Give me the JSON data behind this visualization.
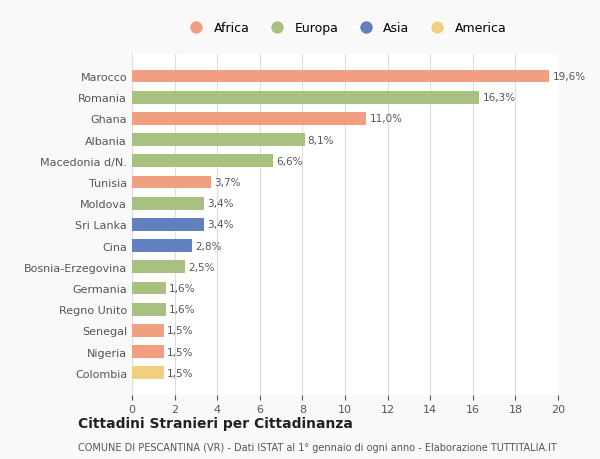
{
  "countries": [
    "Marocco",
    "Romania",
    "Ghana",
    "Albania",
    "Macedonia d/N.",
    "Tunisia",
    "Moldova",
    "Sri Lanka",
    "Cina",
    "Bosnia-Erzegovina",
    "Germania",
    "Regno Unito",
    "Senegal",
    "Nigeria",
    "Colombia"
  ],
  "values": [
    19.6,
    16.3,
    11.0,
    8.1,
    6.6,
    3.7,
    3.4,
    3.4,
    2.8,
    2.5,
    1.6,
    1.6,
    1.5,
    1.5,
    1.5
  ],
  "labels": [
    "19,6%",
    "16,3%",
    "11,0%",
    "8,1%",
    "6,6%",
    "3,7%",
    "3,4%",
    "3,4%",
    "2,8%",
    "2,5%",
    "1,6%",
    "1,6%",
    "1,5%",
    "1,5%",
    "1,5%"
  ],
  "continents": [
    "Africa",
    "Europa",
    "Africa",
    "Europa",
    "Europa",
    "Africa",
    "Europa",
    "Asia",
    "Asia",
    "Europa",
    "Europa",
    "Europa",
    "Africa",
    "Africa",
    "America"
  ],
  "continent_colors": {
    "Africa": "#F0A080",
    "Europa": "#A8C080",
    "Asia": "#6080C0",
    "America": "#F0D080"
  },
  "legend_order": [
    "Africa",
    "Europa",
    "Asia",
    "America"
  ],
  "title": "Cittadini Stranieri per Cittadinanza",
  "subtitle": "COMUNE DI PESCANTINA (VR) - Dati ISTAT al 1° gennaio di ogni anno - Elaborazione TUTTITALIA.IT",
  "xlim": [
    0,
    20
  ],
  "xticks": [
    0,
    2,
    4,
    6,
    8,
    10,
    12,
    14,
    16,
    18,
    20
  ],
  "background_color": "#f9f9f9",
  "bar_background": "#ffffff",
  "grid_color": "#dddddd"
}
